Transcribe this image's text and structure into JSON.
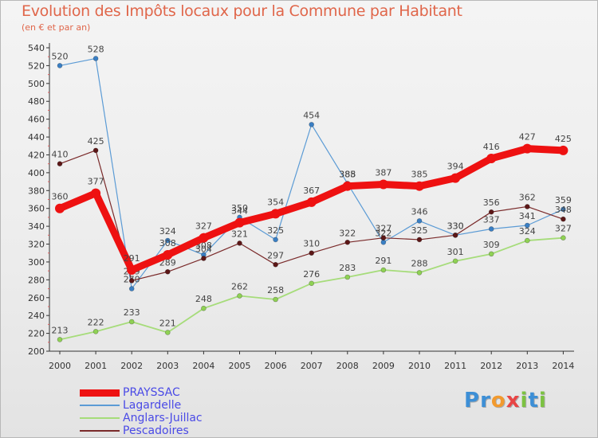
{
  "colors": {
    "title": "#e0664a",
    "legend_text": "#4a4ae6",
    "axis": "#333333"
  },
  "logo": {
    "letters": [
      {
        "ch": "P",
        "color": "#3d8fd6"
      },
      {
        "ch": "r",
        "color": "#3d8fd6"
      },
      {
        "ch": "o",
        "color": "#f29a2e"
      },
      {
        "ch": "x",
        "color": "#e84545"
      },
      {
        "ch": "i",
        "color": "#7cc242"
      },
      {
        "ch": "t",
        "color": "#3d8fd6"
      },
      {
        "ch": "i",
        "color": "#7cc242"
      }
    ]
  },
  "chart_data": {
    "type": "line",
    "title": "Evolution des Impôts locaux pour la Commune par Habitant",
    "subtitle": "(en € et par an)",
    "xlabel": "",
    "ylabel": "",
    "x": [
      "2000",
      "2001",
      "2002",
      "2003",
      "2004",
      "2005",
      "2006",
      "2007",
      "2008",
      "2009",
      "2010",
      "2011",
      "2012",
      "2013",
      "2014"
    ],
    "ylim": [
      200,
      540
    ],
    "yticks": [
      200,
      220,
      240,
      260,
      280,
      300,
      320,
      340,
      360,
      380,
      400,
      420,
      440,
      460,
      480,
      500,
      520,
      540
    ],
    "grid": false,
    "legend_position": "bottom-left",
    "series": [
      {
        "name": "Lagardelle",
        "color": "#5b9bd5",
        "marker": "#3a7fc4",
        "width": 1.2,
        "values": [
          520,
          528,
          270,
          324,
          308,
          350,
          325,
          454,
          388,
          322,
          346,
          330,
          337,
          341,
          359
        ],
        "labels": [
          "520",
          "528",
          "270",
          "324",
          "308",
          "350",
          "325",
          "454",
          "388",
          "322",
          "346",
          "330",
          "337",
          "341",
          "359"
        ]
      },
      {
        "name": "Anglars-Juillac",
        "color": "#a6dc7a",
        "marker": "#8fd154",
        "width": 1.8,
        "values": [
          213,
          222,
          233,
          221,
          248,
          262,
          258,
          276,
          283,
          291,
          288,
          301,
          309,
          324,
          327
        ],
        "labels": [
          "213",
          "222",
          "233",
          "221",
          "248",
          "262",
          "258",
          "276",
          "283",
          "291",
          "288",
          "301",
          "309",
          "324",
          "327"
        ]
      },
      {
        "name": "Pescadoires",
        "color": "#7a2a2a",
        "marker": "#5c1717",
        "width": 1.2,
        "values": [
          410,
          425,
          279,
          289,
          304,
          321,
          297,
          310,
          322,
          327,
          325,
          330,
          356,
          362,
          348
        ],
        "labels": [
          "410",
          "425",
          "279",
          "289",
          "304",
          "321",
          "297",
          "310",
          "322",
          "327",
          "325",
          "330",
          "356",
          "362",
          "348"
        ]
      },
      {
        "name": "PRAYSSAC",
        "color": "#ee1111",
        "marker": "#ee1111",
        "width": 9,
        "values": [
          360,
          377,
          291,
          308,
          327,
          344,
          354,
          367,
          385,
          387,
          385,
          394,
          416,
          427,
          425
        ],
        "labels": [
          "360",
          "377",
          "291",
          "308",
          "327",
          "344",
          "354",
          "367",
          "385",
          "387",
          "385",
          "394",
          "416",
          "427",
          "425"
        ]
      }
    ],
    "legend_order": [
      "PRAYSSAC",
      "Lagardelle",
      "Anglars-Juillac",
      "Pescadoires"
    ]
  }
}
